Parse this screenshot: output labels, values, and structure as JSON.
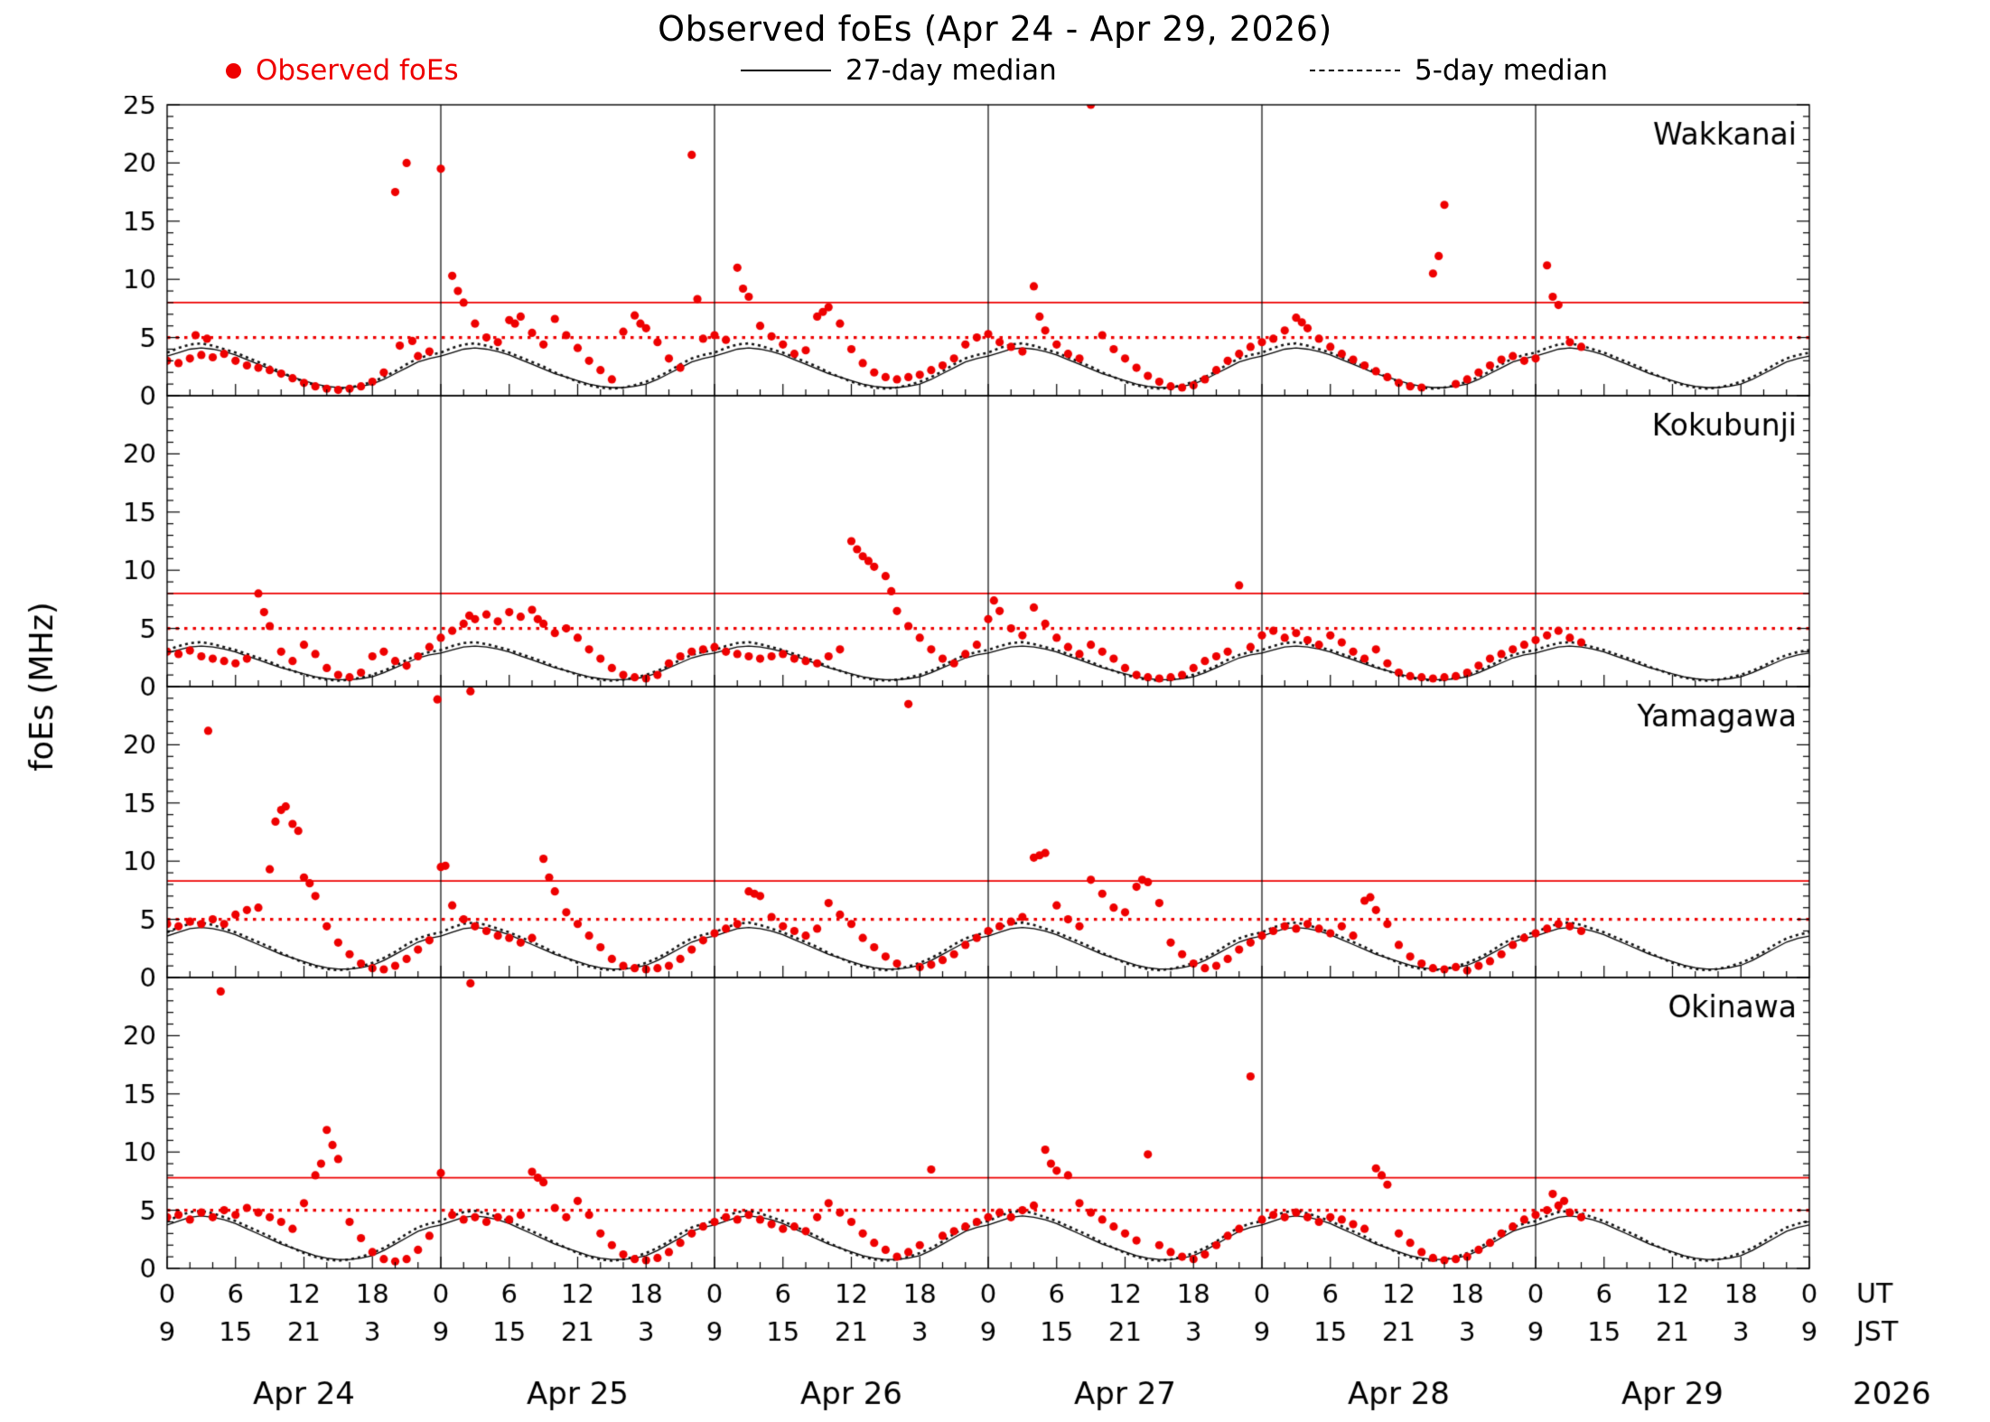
{
  "title": "Observed foEs (Apr 24 - Apr 29, 2026)",
  "legend": {
    "observed_label": "Observed foEs",
    "median27_label": "27-day median",
    "median5_label": "5-day median"
  },
  "colors": {
    "observed": "#ee0000",
    "median": "#000000",
    "reference": "#ee0000"
  },
  "axes": {
    "ylabel": "foEs (MHz)",
    "ut_label": "UT",
    "jst_label": "JST",
    "year": "2026",
    "dates": [
      "Apr 24",
      "Apr 25",
      "Apr 26",
      "Apr 27",
      "Apr 28",
      "Apr 29"
    ],
    "ut_cycle": [
      "0",
      "6",
      "12",
      "18"
    ],
    "jst_cycle": [
      "9",
      "15",
      "21",
      "3"
    ],
    "ytick_step": 5,
    "ymax_label_top_panel_only": 25
  },
  "chart_data": {
    "type": "scatter",
    "x_unit": "hours since Apr 24 00:00 UT",
    "x_range_hours": [
      0,
      144
    ],
    "ymax": 25,
    "hours_per_day": 24,
    "day_count": 6,
    "median27_diurnal": [
      3.4,
      3.7,
      4.0,
      4.1,
      4.0,
      3.8,
      3.5,
      3.1,
      2.7,
      2.3,
      1.9,
      1.6,
      1.3,
      1.0,
      0.8,
      0.7,
      0.7,
      0.8,
      1.0,
      1.4,
      1.9,
      2.4,
      2.9,
      3.2
    ],
    "median5_diurnal": [
      3.7,
      4.1,
      4.4,
      4.5,
      4.3,
      4.0,
      3.7,
      3.3,
      2.9,
      2.5,
      2.0,
      1.6,
      1.2,
      0.9,
      0.7,
      0.6,
      0.7,
      0.9,
      1.2,
      1.6,
      2.1,
      2.7,
      3.2,
      3.5
    ],
    "stations": [
      {
        "name": "Wakkanai",
        "ref_solid_mhz": 8.0,
        "ref_dotted_mhz": 5.0,
        "median_scale": 1.0,
        "observed_hourly": [
          3.0,
          2.8,
          3.2,
          3.5,
          3.3,
          3.6,
          3.0,
          2.6,
          2.4,
          2.2,
          1.9,
          1.5,
          1.1,
          0.8,
          0.6,
          0.5,
          0.6,
          0.8,
          1.2,
          2.0,
          17.5,
          20.0,
          3.4,
          3.8,
          19.5,
          10.3,
          8.0,
          6.2,
          5.0,
          4.6,
          6.5,
          6.8,
          5.4,
          4.4,
          6.6,
          5.2,
          4.1,
          3.0,
          2.2,
          1.4,
          5.5,
          6.9,
          5.8,
          4.6,
          3.2,
          2.4,
          20.7,
          4.9,
          5.2,
          4.8,
          11.0,
          8.5,
          6.0,
          5.1,
          4.4,
          3.6,
          3.9,
          6.8,
          7.6,
          6.2,
          4.0,
          2.8,
          2.0,
          1.6,
          1.4,
          1.6,
          1.8,
          2.2,
          2.6,
          3.2,
          4.4,
          5.0,
          5.3,
          4.6,
          4.2,
          3.8,
          9.4,
          5.6,
          4.4,
          3.6,
          3.2,
          25.0,
          5.2,
          4.0,
          3.2,
          2.4,
          1.7,
          1.2,
          0.8,
          0.7,
          0.9,
          1.4,
          2.2,
          3.0,
          3.6,
          4.2,
          4.6,
          4.9,
          5.6,
          6.7,
          5.8,
          4.9,
          4.2,
          3.6,
          3.1,
          2.6,
          2.1,
          1.6,
          1.1,
          0.8,
          0.7,
          10.5,
          16.4,
          1.0,
          1.4,
          2.0,
          2.6,
          3.1,
          3.4,
          3.0,
          3.2,
          11.2,
          7.8,
          4.6,
          4.2
        ],
        "observed_extra": [
          [
            2.5,
            5.2
          ],
          [
            3.5,
            4.9
          ],
          [
            20.4,
            4.3
          ],
          [
            21.5,
            4.7
          ],
          [
            25.5,
            9.0
          ],
          [
            30.5,
            6.2
          ],
          [
            41.5,
            6.2
          ],
          [
            46.5,
            8.3
          ],
          [
            50.5,
            9.2
          ],
          [
            57.5,
            7.2
          ],
          [
            76.5,
            6.8
          ],
          [
            99.5,
            6.3
          ],
          [
            111.5,
            12.0
          ],
          [
            121.5,
            8.5
          ]
        ]
      },
      {
        "name": "Kokubunji",
        "ref_solid_mhz": 8.0,
        "ref_dotted_mhz": 5.0,
        "median_scale": 0.85,
        "observed_hourly": [
          3.0,
          2.8,
          3.1,
          2.6,
          2.4,
          2.2,
          2.0,
          2.4,
          8.0,
          5.2,
          3.0,
          2.2,
          3.6,
          2.8,
          1.6,
          1.0,
          0.8,
          1.2,
          2.6,
          3.0,
          2.2,
          1.8,
          2.6,
          3.4,
          4.2,
          4.8,
          5.4,
          5.8,
          6.2,
          5.6,
          6.4,
          6.0,
          6.6,
          5.4,
          4.6,
          5.0,
          4.2,
          3.2,
          2.4,
          1.6,
          1.0,
          0.8,
          0.7,
          1.0,
          2.0,
          2.6,
          3.0,
          3.2,
          3.4,
          3.0,
          2.8,
          2.6,
          2.4,
          2.6,
          2.8,
          2.4,
          2.2,
          2.0,
          2.6,
          3.2,
          12.5,
          11.2,
          10.3,
          9.5,
          6.5,
          5.2,
          4.2,
          3.2,
          2.4,
          2.0,
          2.8,
          3.6,
          5.8,
          6.5,
          5.0,
          4.4,
          6.8,
          5.4,
          4.2,
          3.4,
          2.8,
          3.6,
          3.0,
          2.4,
          1.6,
          1.0,
          0.8,
          0.7,
          0.8,
          1.0,
          1.6,
          2.2,
          2.6,
          3.0,
          8.7,
          3.4,
          4.4,
          4.8,
          4.2,
          4.6,
          4.0,
          3.6,
          4.4,
          3.8,
          3.0,
          2.4,
          3.2,
          2.0,
          1.2,
          0.9,
          0.8,
          0.7,
          0.8,
          0.9,
          1.2,
          1.8,
          2.4,
          2.8,
          3.2,
          3.6,
          4.0,
          4.4,
          4.8,
          4.2,
          3.8
        ],
        "observed_extra": [
          [
            8.5,
            6.4
          ],
          [
            26.5,
            6.1
          ],
          [
            32.5,
            5.8
          ],
          [
            60.5,
            11.8
          ],
          [
            61.5,
            10.8
          ],
          [
            63.5,
            8.2
          ],
          [
            72.5,
            7.4
          ]
        ]
      },
      {
        "name": "Yamagawa",
        "ref_solid_mhz": 8.3,
        "ref_dotted_mhz": 5.0,
        "median_scale": 1.05,
        "observed_hourly": [
          4.6,
          4.4,
          4.8,
          4.6,
          5.0,
          4.6,
          5.4,
          5.8,
          6.0,
          9.3,
          14.4,
          13.2,
          8.6,
          7.0,
          4.4,
          3.0,
          2.0,
          1.2,
          0.8,
          0.7,
          1.0,
          1.6,
          2.4,
          3.2,
          9.5,
          6.2,
          5.0,
          4.4,
          4.0,
          3.6,
          3.4,
          3.0,
          3.4,
          10.2,
          7.4,
          5.6,
          4.6,
          3.6,
          2.6,
          1.6,
          1.0,
          0.8,
          0.7,
          0.8,
          1.0,
          1.6,
          2.4,
          3.2,
          3.8,
          4.2,
          4.6,
          7.4,
          7.0,
          5.2,
          4.4,
          4.0,
          3.6,
          4.2,
          6.4,
          5.4,
          4.6,
          3.4,
          2.6,
          1.8,
          1.2,
          23.5,
          0.9,
          1.1,
          1.5,
          2.0,
          2.8,
          3.4,
          4.0,
          4.4,
          4.8,
          5.2,
          10.3,
          10.7,
          6.2,
          5.0,
          4.4,
          8.4,
          7.2,
          6.0,
          5.6,
          7.8,
          8.2,
          6.4,
          3.0,
          2.0,
          1.2,
          0.8,
          1.0,
          1.6,
          2.4,
          3.0,
          3.6,
          4.0,
          4.4,
          4.2,
          4.6,
          4.2,
          3.8,
          4.4,
          3.6,
          6.6,
          5.8,
          4.6,
          2.8,
          1.8,
          1.2,
          0.8,
          0.7,
          0.9,
          0.6,
          1.0,
          1.4,
          2.0,
          2.8,
          3.4,
          3.8,
          4.2,
          4.6,
          4.4,
          4.0
        ],
        "observed_extra": [
          [
            3.6,
            21.2
          ],
          [
            9.5,
            13.4
          ],
          [
            10.4,
            14.7
          ],
          [
            11.5,
            12.6
          ],
          [
            12.5,
            8.1
          ],
          [
            23.7,
            23.9
          ],
          [
            26.6,
            24.6
          ],
          [
            24.4,
            9.6
          ],
          [
            33.5,
            8.6
          ],
          [
            51.5,
            7.2
          ],
          [
            76.5,
            10.5
          ],
          [
            85.5,
            8.4
          ],
          [
            105.5,
            6.9
          ]
        ]
      },
      {
        "name": "Okinawa",
        "ref_solid_mhz": 7.8,
        "ref_dotted_mhz": 5.0,
        "median_scale": 1.1,
        "observed_hourly": [
          4.4,
          4.6,
          4.2,
          4.8,
          4.4,
          5.0,
          4.6,
          5.2,
          4.8,
          4.4,
          4.0,
          3.4,
          5.6,
          8.0,
          11.9,
          9.4,
          4.0,
          2.6,
          1.4,
          0.8,
          0.6,
          0.8,
          1.6,
          2.8,
          8.2,
          4.6,
          4.2,
          4.4,
          4.0,
          4.4,
          4.2,
          4.6,
          8.3,
          7.4,
          5.2,
          4.4,
          5.8,
          4.6,
          3.0,
          2.0,
          1.2,
          0.8,
          0.7,
          0.9,
          1.4,
          2.2,
          3.0,
          3.6,
          4.0,
          4.4,
          4.2,
          4.6,
          4.2,
          3.8,
          3.4,
          3.6,
          3.2,
          4.4,
          5.6,
          4.8,
          4.0,
          3.0,
          2.2,
          1.6,
          1.0,
          1.4,
          2.0,
          8.5,
          2.8,
          3.2,
          3.6,
          4.0,
          4.4,
          4.8,
          4.4,
          5.0,
          5.4,
          10.2,
          8.4,
          8.0,
          5.6,
          4.8,
          4.2,
          3.6,
          3.0,
          2.4,
          9.8,
          2.0,
          1.4,
          1.0,
          0.8,
          1.2,
          2.0,
          2.8,
          3.4,
          16.5,
          4.2,
          4.6,
          4.4,
          4.8,
          4.4,
          4.0,
          4.4,
          4.2,
          3.8,
          3.4,
          8.6,
          7.2,
          3.0,
          2.2,
          1.4,
          0.9,
          0.7,
          0.8,
          1.0,
          1.6,
          2.2,
          3.0,
          3.6,
          4.2,
          4.6,
          5.0,
          5.4,
          4.8,
          4.4
        ],
        "observed_extra": [
          [
            4.7,
            23.8
          ],
          [
            26.6,
            24.5
          ],
          [
            13.5,
            9.0
          ],
          [
            14.5,
            10.6
          ],
          [
            32.5,
            7.8
          ],
          [
            77.5,
            9.0
          ],
          [
            106.5,
            8.0
          ],
          [
            121.5,
            6.4
          ],
          [
            122.5,
            5.8
          ]
        ]
      }
    ]
  }
}
